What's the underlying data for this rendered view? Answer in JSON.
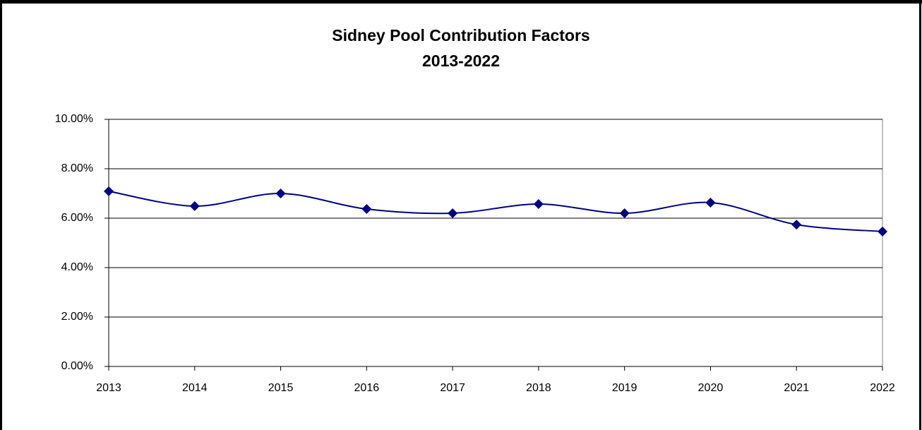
{
  "chart_data": {
    "type": "line",
    "title": "Sidney Pool Contribution Factors",
    "subtitle": "2013-2022",
    "categories": [
      "2013",
      "2014",
      "2015",
      "2016",
      "2017",
      "2018",
      "2019",
      "2020",
      "2021",
      "2022"
    ],
    "series": [
      {
        "name": "Contribution Factor",
        "color": "#000080",
        "values": [
          7.09,
          6.49,
          7.0,
          6.37,
          6.2,
          6.57,
          6.2,
          6.63,
          5.74,
          5.46
        ]
      }
    ],
    "ylim": [
      0,
      10
    ],
    "yticks": [
      {
        "value": 0,
        "label": "0.00%"
      },
      {
        "value": 2,
        "label": "2.00%"
      },
      {
        "value": 4,
        "label": "4.00%"
      },
      {
        "value": 6,
        "label": "6.00%"
      },
      {
        "value": 8,
        "label": "8.00%"
      },
      {
        "value": 10,
        "label": "10.00%"
      }
    ],
    "grid": true,
    "smooth": true
  }
}
